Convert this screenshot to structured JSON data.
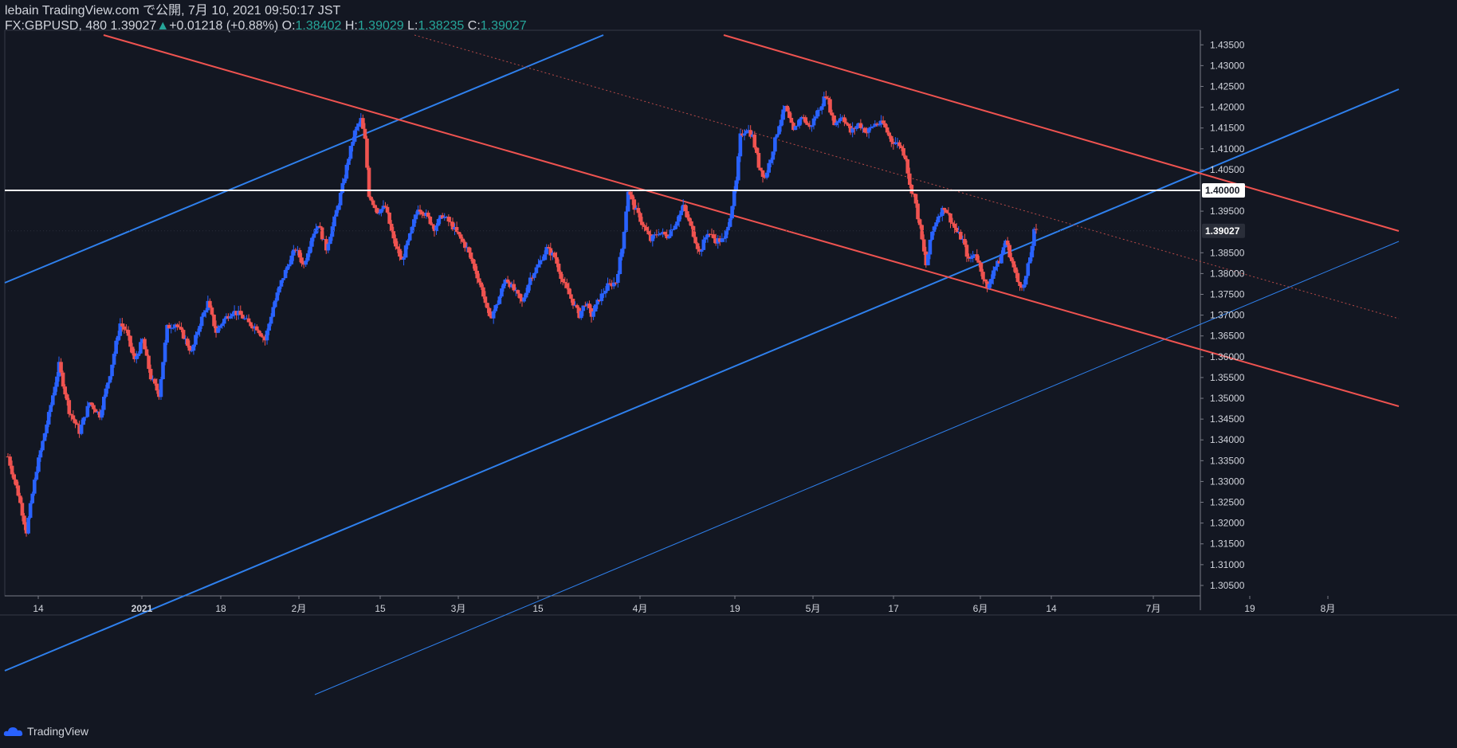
{
  "header": {
    "line1": "lebain TradingView.com で公開, 7月 10, 2021 09:50:17 JST",
    "symbol": "FX:GBPUSD, 480",
    "last": "1.39027",
    "change": "+0.01218 (+0.88%)",
    "o_label": "O:",
    "o_value": "1.38402",
    "h_label": "H:",
    "h_value": "1.39029",
    "l_label": "L:",
    "l_value": "1.38235",
    "c_label": "C:",
    "c_value": "1.39027"
  },
  "brand": {
    "name": "TradingView"
  },
  "colors": {
    "background": "#131722",
    "up": "#2962ff",
    "down": "#ef5350",
    "trend_blue": "#2f80ed",
    "trend_red": "#ef5350",
    "text": "#d1d4dc"
  },
  "chart_data": {
    "type": "candlestick",
    "symbol": "FX:GBPUSD",
    "interval": "480",
    "x_tick_labels": [
      "14",
      "2021",
      "18",
      "2月",
      "15",
      "3月",
      "15",
      "4月",
      "19",
      "5月",
      "17",
      "6月",
      "14",
      "7月",
      "19",
      "8月"
    ],
    "y_range": [
      1.3025,
      1.4385
    ],
    "y_tick_labels": [
      "1.43500",
      "1.43000",
      "1.42500",
      "1.42000",
      "1.41500",
      "1.41000",
      "1.40500",
      "1.39500",
      "1.38500",
      "1.38000",
      "1.37500",
      "1.37000",
      "1.36500",
      "1.36000",
      "1.35500",
      "1.35000",
      "1.34500",
      "1.34000",
      "1.33500",
      "1.33000",
      "1.32500",
      "1.32000",
      "1.31500",
      "1.31000",
      "1.30500"
    ],
    "horizontal_level": "1.40000",
    "last_price": "1.39027",
    "price_path": [
      [
        0,
        1.336
      ],
      [
        5,
        1.327
      ],
      [
        9,
        1.318
      ],
      [
        14,
        1.333
      ],
      [
        20,
        1.346
      ],
      [
        25,
        1.358
      ],
      [
        30,
        1.347
      ],
      [
        35,
        1.342
      ],
      [
        40,
        1.349
      ],
      [
        45,
        1.346
      ],
      [
        50,
        1.356
      ],
      [
        55,
        1.368
      ],
      [
        58,
        1.366
      ],
      [
        62,
        1.359
      ],
      [
        66,
        1.364
      ],
      [
        70,
        1.355
      ],
      [
        74,
        1.351
      ],
      [
        78,
        1.367
      ],
      [
        82,
        1.368
      ],
      [
        86,
        1.365
      ],
      [
        90,
        1.361
      ],
      [
        94,
        1.368
      ],
      [
        98,
        1.373
      ],
      [
        102,
        1.366
      ],
      [
        106,
        1.369
      ],
      [
        110,
        1.371
      ],
      [
        114,
        1.37
      ],
      [
        118,
        1.368
      ],
      [
        122,
        1.367
      ],
      [
        126,
        1.364
      ],
      [
        130,
        1.372
      ],
      [
        134,
        1.378
      ],
      [
        138,
        1.383
      ],
      [
        141,
        1.386
      ],
      [
        145,
        1.382
      ],
      [
        149,
        1.389
      ],
      [
        152,
        1.392
      ],
      [
        156,
        1.386
      ],
      [
        160,
        1.393
      ],
      [
        164,
        1.401
      ],
      [
        167,
        1.408
      ],
      [
        170,
        1.414
      ],
      [
        173,
        1.417
      ],
      [
        175,
        1.412
      ],
      [
        177,
        1.399
      ],
      [
        181,
        1.395
      ],
      [
        185,
        1.396
      ],
      [
        189,
        1.388
      ],
      [
        193,
        1.383
      ],
      [
        197,
        1.389
      ],
      [
        201,
        1.396
      ],
      [
        205,
        1.394
      ],
      [
        209,
        1.391
      ],
      [
        213,
        1.394
      ],
      [
        217,
        1.392
      ],
      [
        221,
        1.389
      ],
      [
        225,
        1.386
      ],
      [
        229,
        1.381
      ],
      [
        233,
        1.375
      ],
      [
        236,
        1.369
      ],
      [
        240,
        1.373
      ],
      [
        244,
        1.379
      ],
      [
        248,
        1.376
      ],
      [
        252,
        1.373
      ],
      [
        256,
        1.379
      ],
      [
        260,
        1.382
      ],
      [
        264,
        1.386
      ],
      [
        268,
        1.384
      ],
      [
        272,
        1.378
      ],
      [
        276,
        1.374
      ],
      [
        280,
        1.37
      ],
      [
        283,
        1.373
      ],
      [
        286,
        1.37
      ],
      [
        290,
        1.374
      ],
      [
        294,
        1.377
      ],
      [
        298,
        1.378
      ],
      [
        301,
        1.386
      ],
      [
        304,
        1.4
      ],
      [
        307,
        1.396
      ],
      [
        311,
        1.392
      ],
      [
        315,
        1.388
      ],
      [
        319,
        1.39
      ],
      [
        323,
        1.389
      ],
      [
        327,
        1.392
      ],
      [
        331,
        1.396
      ],
      [
        335,
        1.391
      ],
      [
        339,
        1.385
      ],
      [
        343,
        1.39
      ],
      [
        347,
        1.388
      ],
      [
        351,
        1.388
      ],
      [
        354,
        1.394
      ],
      [
        357,
        1.402
      ],
      [
        359,
        1.413
      ],
      [
        362,
        1.415
      ],
      [
        365,
        1.413
      ],
      [
        368,
        1.406
      ],
      [
        371,
        1.403
      ],
      [
        374,
        1.408
      ],
      [
        378,
        1.416
      ],
      [
        381,
        1.42
      ],
      [
        385,
        1.414
      ],
      [
        389,
        1.418
      ],
      [
        393,
        1.415
      ],
      [
        397,
        1.419
      ],
      [
        401,
        1.423
      ],
      [
        405,
        1.416
      ],
      [
        409,
        1.418
      ],
      [
        413,
        1.414
      ],
      [
        417,
        1.416
      ],
      [
        421,
        1.414
      ],
      [
        425,
        1.416
      ],
      [
        429,
        1.416
      ],
      [
        433,
        1.412
      ],
      [
        437,
        1.411
      ],
      [
        440,
        1.408
      ],
      [
        442,
        1.401
      ],
      [
        444,
        1.399
      ],
      [
        447,
        1.391
      ],
      [
        450,
        1.382
      ],
      [
        453,
        1.39
      ],
      [
        456,
        1.394
      ],
      [
        459,
        1.396
      ],
      [
        462,
        1.393
      ],
      [
        465,
        1.39
      ],
      [
        468,
        1.388
      ],
      [
        471,
        1.383
      ],
      [
        474,
        1.385
      ],
      [
        477,
        1.381
      ],
      [
        480,
        1.376
      ],
      [
        483,
        1.381
      ],
      [
        486,
        1.383
      ],
      [
        489,
        1.388
      ],
      [
        492,
        1.383
      ],
      [
        495,
        1.378
      ],
      [
        498,
        1.377
      ],
      [
        501,
        1.384
      ],
      [
        503,
        1.39
      ]
    ]
  }
}
